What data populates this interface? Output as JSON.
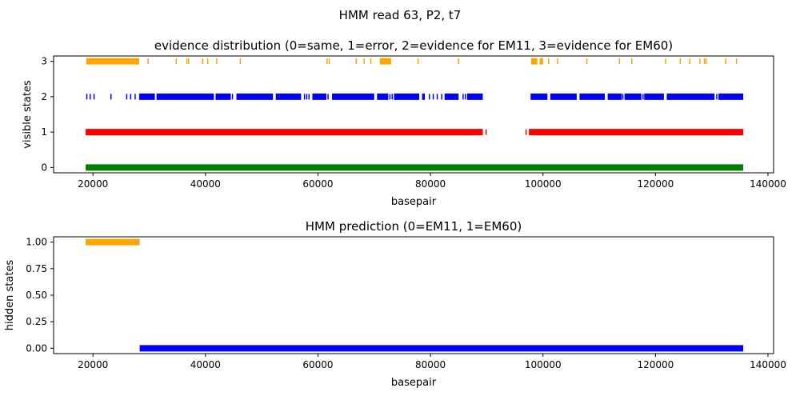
{
  "figure": {
    "suptitle": "HMM read 63, P2, t7"
  },
  "chart_data": [
    {
      "type": "scatter",
      "title": "evidence distribution (0=same, 1=error, 2=evidence for EM11, 3=evidence for EM60)",
      "xlabel": "basepair",
      "ylabel": "visible states",
      "xlim": [
        13000,
        141000
      ],
      "ylim": [
        -0.15,
        3.15
      ],
      "xticks": [
        20000,
        40000,
        60000,
        80000,
        100000,
        120000,
        140000
      ],
      "yticks": [
        0,
        1,
        2,
        3
      ],
      "grid": false,
      "colors": {
        "0": "#008000",
        "1": "#ff0000",
        "2": "#0000ff",
        "3": "#ffa500"
      },
      "segments": [
        {
          "y": 0,
          "color": "#008000",
          "ranges": [
            [
              18700,
              135600
            ]
          ]
        },
        {
          "y": 1,
          "color": "#ff0000",
          "ranges": [
            [
              18700,
              89300
            ],
            [
              97500,
              135600
            ]
          ]
        },
        {
          "y": 2,
          "color": "#0000ff",
          "ranges": [
            [
              28200,
              31000
            ],
            [
              31300,
              41500
            ],
            [
              41800,
              44500
            ],
            [
              45500,
              52000
            ],
            [
              52500,
              57000
            ],
            [
              59000,
              61500
            ],
            [
              62500,
              70000
            ],
            [
              70500,
              72500
            ],
            [
              73500,
              78000
            ],
            [
              78500,
              79000
            ],
            [
              82500,
              85000
            ],
            [
              86500,
              89300
            ],
            [
              97800,
              100800
            ],
            [
              101300,
              106000
            ],
            [
              106500,
              111000
            ],
            [
              111500,
              114000
            ],
            [
              114500,
              117500
            ],
            [
              118000,
              121500
            ],
            [
              122000,
              130500
            ],
            [
              131200,
              135600
            ]
          ]
        },
        {
          "y": 3,
          "color": "#ffa500",
          "ranges": [
            [
              18800,
              28200
            ],
            [
              71000,
              73000
            ],
            [
              97900,
              99000
            ],
            [
              99400,
              100000
            ]
          ]
        }
      ],
      "points": [
        {
          "y": 1,
          "color": "#ff0000",
          "x": [
            89900,
            97000
          ]
        },
        {
          "y": 2,
          "color": "#0000ff",
          "x": [
            18900,
            19500,
            20200,
            23200,
            26000,
            26700,
            27500,
            40800,
            44800,
            46500,
            54500,
            57600,
            58000,
            58400,
            61800,
            67500,
            72800,
            73200,
            79800,
            80500,
            81200,
            82000,
            85800,
            86200,
            100400,
            102000,
            104700,
            107500,
            114200,
            117800,
            126600,
            130900,
            131400
          ]
        },
        {
          "y": 3,
          "color": "#ffa500",
          "x": [
            29800,
            34800,
            36700,
            37000,
            39500,
            40400,
            42000,
            46200,
            61600,
            62000,
            66800,
            68200,
            69400,
            77800,
            85000,
            101000,
            102600,
            107800,
            113600,
            115800,
            121800,
            124400,
            126100,
            127900,
            128700,
            129000,
            132500,
            134400
          ]
        }
      ]
    },
    {
      "type": "line",
      "title": "HMM prediction (0=EM11, 1=EM60)",
      "xlabel": "basepair",
      "ylabel": "hidden states",
      "xlim": [
        13000,
        141000
      ],
      "ylim": [
        -0.05,
        1.05
      ],
      "xticks": [
        20000,
        40000,
        60000,
        80000,
        100000,
        120000,
        140000
      ],
      "yticks": [
        0.0,
        0.25,
        0.5,
        0.75,
        1.0
      ],
      "grid": false,
      "segments": [
        {
          "y": 1.0,
          "color": "#ffa500",
          "ranges": [
            [
              18700,
              28300
            ]
          ]
        },
        {
          "y": 0.0,
          "color": "#0000ff",
          "ranges": [
            [
              28300,
              135600
            ]
          ]
        }
      ]
    }
  ]
}
